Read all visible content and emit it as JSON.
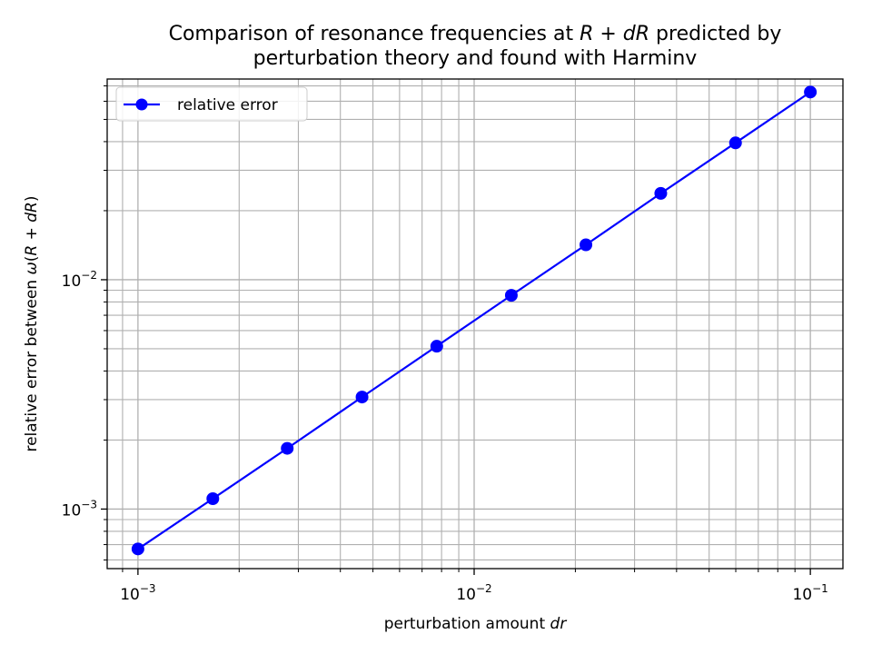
{
  "chart_data": {
    "type": "line",
    "title_lines": [
      [
        "Comparison of resonance frequencies at ",
        "R",
        " + ",
        "dR",
        " predicted by"
      ],
      [
        "perturbation theory and found with Harminv"
      ]
    ],
    "xlabel_parts": [
      "perturbation amount ",
      "dr"
    ],
    "ylabel_parts": [
      "relative error between ",
      "ω",
      "(",
      "R",
      " + ",
      "dR",
      ")"
    ],
    "x_scale": "log",
    "y_scale": "log",
    "xlim": [
      0.00081,
      0.125
    ],
    "ylim": [
      0.00055,
      0.075
    ],
    "x_ticks": [
      {
        "value": 0.001,
        "base": "10",
        "exp": "−3"
      },
      {
        "value": 0.01,
        "base": "10",
        "exp": "−2"
      },
      {
        "value": 0.1,
        "base": "10",
        "exp": "−1"
      }
    ],
    "y_ticks": [
      {
        "value": 0.001,
        "base": "10",
        "exp": "−3"
      },
      {
        "value": 0.01,
        "base": "10",
        "exp": "−2"
      }
    ],
    "grid": true,
    "grid_minor": true,
    "legend_position": "upper-left",
    "series": [
      {
        "name": "relative error",
        "color": "#0000ff",
        "marker": "circle",
        "x": [
          0.001,
          0.00167,
          0.00278,
          0.00464,
          0.00774,
          0.0129,
          0.0215,
          0.0359,
          0.0599,
          0.1
        ],
        "y": [
          0.00067,
          0.00111,
          0.00184,
          0.00308,
          0.00513,
          0.00855,
          0.0142,
          0.0238,
          0.0395,
          0.0658
        ]
      }
    ]
  }
}
